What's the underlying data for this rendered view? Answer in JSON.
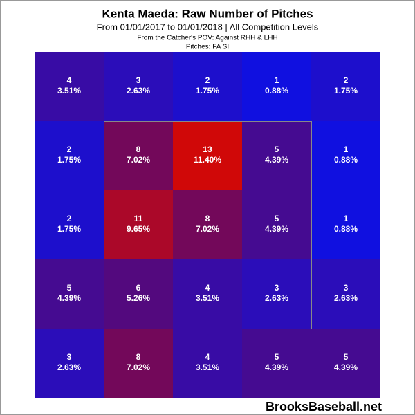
{
  "chart_data": {
    "type": "heatmap",
    "title": "Kenta Maeda: Raw Number of Pitches",
    "subtitle": "From 01/01/2017 to 01/01/2018 | All Competition Levels",
    "view_note": "From the Catcher's POV:  Against RHH & LHH",
    "pitches_note": "Pitches:  FA  SI",
    "values": [
      [
        4,
        3,
        2,
        1,
        2
      ],
      [
        2,
        8,
        13,
        5,
        1
      ],
      [
        2,
        11,
        8,
        5,
        1
      ],
      [
        5,
        6,
        4,
        3,
        3
      ],
      [
        3,
        8,
        4,
        5,
        5
      ]
    ],
    "percents": [
      [
        3.51,
        2.63,
        1.75,
        0.88,
        1.75
      ],
      [
        1.75,
        7.02,
        11.4,
        4.39,
        0.88
      ],
      [
        1.75,
        9.65,
        7.02,
        4.39,
        0.88
      ],
      [
        4.39,
        5.26,
        3.51,
        2.63,
        2.63
      ],
      [
        2.63,
        7.02,
        3.51,
        4.39,
        4.39
      ]
    ],
    "percent_labels": [
      [
        "3.51%",
        "2.63%",
        "1.75%",
        "0.88%",
        "1.75%"
      ],
      [
        "1.75%",
        "7.02%",
        "11.40%",
        "4.39%",
        "0.88%"
      ],
      [
        "1.75%",
        "9.65%",
        "7.02%",
        "4.39%",
        "0.88%"
      ],
      [
        "4.39%",
        "5.26%",
        "3.51%",
        "2.63%",
        "2.63%"
      ],
      [
        "2.63%",
        "7.02%",
        "3.51%",
        "4.39%",
        "4.39%"
      ]
    ],
    "color_stops": [
      "#1010e0",
      "#60086a",
      "#d00808"
    ],
    "strike_zone_color": "#888888",
    "source": "BrooksBaseball.net"
  }
}
